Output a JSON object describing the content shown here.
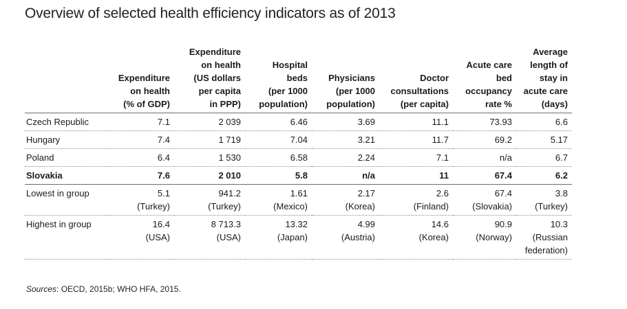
{
  "title": "Overview of selected health efficiency indicators as of 2013",
  "columns": [
    "",
    "Expenditure\non health\n(% of GDP)",
    "Expenditure\non health\n(US dollars\nper capita\nin PPP)",
    "Hospital\nbeds\n(per 1000\npopulation)",
    "Physicians\n(per 1000\npopulation)",
    "Doctor\nconsultations\n(per capita)",
    "Acute care\nbed\noccupancy\nrate %",
    "Average\nlength of\nstay in\nacute care\n(days)"
  ],
  "rows": [
    [
      "Czech Republic",
      "7.1",
      "2 039",
      "6.46",
      "3.69",
      "11.1",
      "73.93",
      "6.6"
    ],
    [
      "Hungary",
      "7.4",
      "1 719",
      "7.04",
      "3.21",
      "11.7",
      "69.2",
      "5.17"
    ],
    [
      "Poland",
      "6.4",
      "1 530",
      "6.58",
      "2.24",
      "7.1",
      "n/a",
      "6.7"
    ],
    [
      "Slovakia",
      "7.6",
      "2 010",
      "5.8",
      "n/a",
      "11",
      "67.4",
      "6.2"
    ],
    [
      "Lowest in group",
      "5.1\n(Turkey)",
      "941.2\n(Turkey)",
      "1.61\n(Mexico)",
      "2.17\n(Korea)",
      "2.6\n(Finland)",
      "67.4\n(Slovakia)",
      "3.8\n(Turkey)"
    ],
    [
      "Highest in group",
      "16.4\n(USA)",
      "8 713.3\n(USA)",
      "13.32\n(Japan)",
      "4.99\n(Austria)",
      "14.6\n(Korea)",
      "90.9\n(Norway)",
      "10.3\n(Russian\nfederation)"
    ]
  ],
  "sources": {
    "label": "Sources",
    "text": ": OECD, 2015b; WHO HFA, 2015."
  }
}
